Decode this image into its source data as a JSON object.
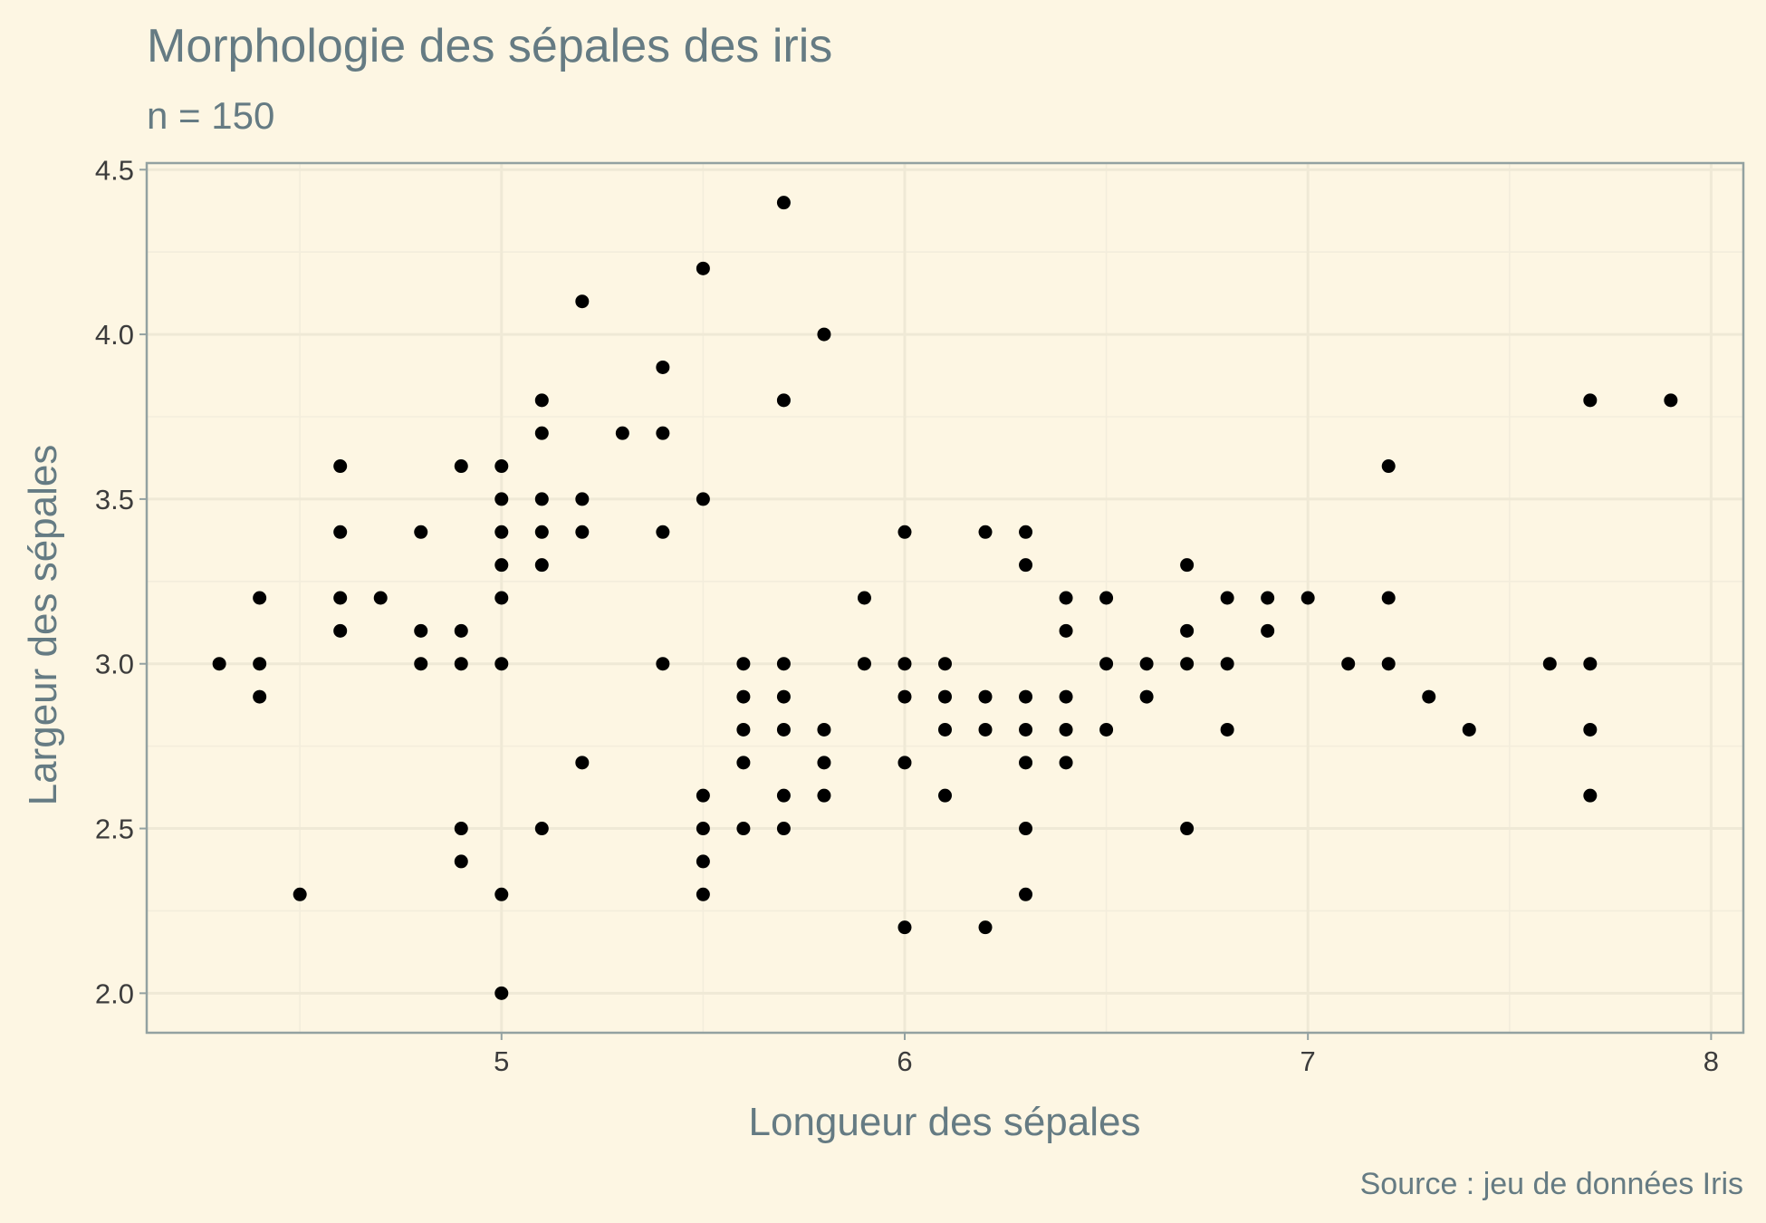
{
  "chart_data": {
    "type": "scatter",
    "title": "Morphologie des sépales des iris",
    "subtitle": "n = 150",
    "xlabel": "Longueur des sépales",
    "ylabel": "Largeur des sépales",
    "caption": "Source : jeu de données Iris",
    "xlim": [
      4.12,
      8.08
    ],
    "ylim": [
      1.88,
      4.52
    ],
    "xticks": [
      5,
      6,
      7,
      8
    ],
    "xtick_labels": [
      "5",
      "6",
      "7",
      "8"
    ],
    "xminor": [
      4.5,
      5.5,
      6.5,
      7.5
    ],
    "yticks": [
      2.0,
      2.5,
      3.0,
      3.5,
      4.0,
      4.5
    ],
    "ytick_labels": [
      "2.0",
      "2.5",
      "3.0",
      "3.5",
      "4.0",
      "4.5"
    ],
    "yminor": [
      2.25,
      2.75,
      3.25,
      3.75,
      4.25
    ],
    "grid": true,
    "legend": "none",
    "point_color": "#000000",
    "background_color": "#fdf6e3",
    "points": [
      [
        4.3,
        3.0
      ],
      [
        4.4,
        3.2
      ],
      [
        4.4,
        3.0
      ],
      [
        4.4,
        2.9
      ],
      [
        4.5,
        2.3
      ],
      [
        4.6,
        3.6
      ],
      [
        4.6,
        3.4
      ],
      [
        4.6,
        3.2
      ],
      [
        4.6,
        3.1
      ],
      [
        4.7,
        3.2
      ],
      [
        4.8,
        3.4
      ],
      [
        4.8,
        3.1
      ],
      [
        4.8,
        3.0
      ],
      [
        4.9,
        3.6
      ],
      [
        4.9,
        3.1
      ],
      [
        4.9,
        3.0
      ],
      [
        4.9,
        2.5
      ],
      [
        4.9,
        2.4
      ],
      [
        5.0,
        3.6
      ],
      [
        5.0,
        3.5
      ],
      [
        5.0,
        3.4
      ],
      [
        5.0,
        3.3
      ],
      [
        5.0,
        3.2
      ],
      [
        5.0,
        3.0
      ],
      [
        5.0,
        2.3
      ],
      [
        5.0,
        2.0
      ],
      [
        5.1,
        3.8
      ],
      [
        5.1,
        3.7
      ],
      [
        5.1,
        3.5
      ],
      [
        5.1,
        3.4
      ],
      [
        5.1,
        3.3
      ],
      [
        5.1,
        2.5
      ],
      [
        5.2,
        4.1
      ],
      [
        5.2,
        3.5
      ],
      [
        5.2,
        3.4
      ],
      [
        5.2,
        2.7
      ],
      [
        5.3,
        3.7
      ],
      [
        5.4,
        3.9
      ],
      [
        5.4,
        3.7
      ],
      [
        5.4,
        3.4
      ],
      [
        5.4,
        3.0
      ],
      [
        5.5,
        4.2
      ],
      [
        5.5,
        3.5
      ],
      [
        5.5,
        2.6
      ],
      [
        5.5,
        2.5
      ],
      [
        5.5,
        2.4
      ],
      [
        5.5,
        2.3
      ],
      [
        5.6,
        3.0
      ],
      [
        5.6,
        2.9
      ],
      [
        5.6,
        2.8
      ],
      [
        5.6,
        2.7
      ],
      [
        5.6,
        2.5
      ],
      [
        5.7,
        4.4
      ],
      [
        5.7,
        3.8
      ],
      [
        5.7,
        3.0
      ],
      [
        5.7,
        2.9
      ],
      [
        5.7,
        2.8
      ],
      [
        5.7,
        2.6
      ],
      [
        5.7,
        2.5
      ],
      [
        5.8,
        4.0
      ],
      [
        5.8,
        2.8
      ],
      [
        5.8,
        2.7
      ],
      [
        5.8,
        2.6
      ],
      [
        5.9,
        3.2
      ],
      [
        5.9,
        3.0
      ],
      [
        6.0,
        3.4
      ],
      [
        6.0,
        3.0
      ],
      [
        6.0,
        2.9
      ],
      [
        6.0,
        2.7
      ],
      [
        6.0,
        2.2
      ],
      [
        6.1,
        3.0
      ],
      [
        6.1,
        2.9
      ],
      [
        6.1,
        2.8
      ],
      [
        6.1,
        2.6
      ],
      [
        6.2,
        3.4
      ],
      [
        6.2,
        2.9
      ],
      [
        6.2,
        2.8
      ],
      [
        6.2,
        2.2
      ],
      [
        6.3,
        3.4
      ],
      [
        6.3,
        3.3
      ],
      [
        6.3,
        2.9
      ],
      [
        6.3,
        2.8
      ],
      [
        6.3,
        2.7
      ],
      [
        6.3,
        2.5
      ],
      [
        6.3,
        2.3
      ],
      [
        6.4,
        3.2
      ],
      [
        6.4,
        3.1
      ],
      [
        6.4,
        2.9
      ],
      [
        6.4,
        2.8
      ],
      [
        6.4,
        2.7
      ],
      [
        6.5,
        3.2
      ],
      [
        6.5,
        3.0
      ],
      [
        6.5,
        2.8
      ],
      [
        6.6,
        3.0
      ],
      [
        6.6,
        2.9
      ],
      [
        6.7,
        3.3
      ],
      [
        6.7,
        3.1
      ],
      [
        6.7,
        3.0
      ],
      [
        6.7,
        2.5
      ],
      [
        6.8,
        3.2
      ],
      [
        6.8,
        3.0
      ],
      [
        6.8,
        2.8
      ],
      [
        6.9,
        3.2
      ],
      [
        6.9,
        3.1
      ],
      [
        7.0,
        3.2
      ],
      [
        7.1,
        3.0
      ],
      [
        7.2,
        3.6
      ],
      [
        7.2,
        3.2
      ],
      [
        7.2,
        3.0
      ],
      [
        7.3,
        2.9
      ],
      [
        7.4,
        2.8
      ],
      [
        7.6,
        3.0
      ],
      [
        7.7,
        3.8
      ],
      [
        7.7,
        3.0
      ],
      [
        7.7,
        2.8
      ],
      [
        7.7,
        2.6
      ],
      [
        7.9,
        3.8
      ]
    ]
  }
}
